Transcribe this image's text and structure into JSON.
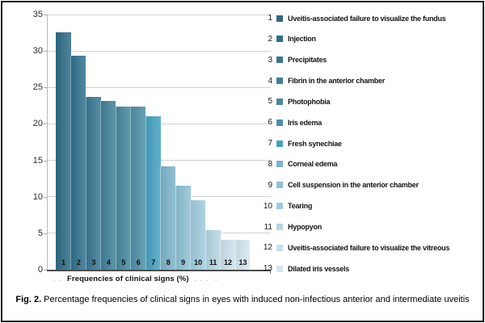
{
  "figure": {
    "caption": {
      "prefix": "Fig. 2.",
      "text": " Percentage frequencies of clinical signs in eyes with induced non-infectious anterior and intermediate uveitis"
    }
  },
  "chart_data": {
    "type": "bar",
    "title": "",
    "xlabel": "Frequencies of clinical signs (%)",
    "ylabel": "",
    "ylim": [
      0,
      35
    ],
    "yticks": [
      0,
      5,
      10,
      15,
      20,
      25,
      30,
      35
    ],
    "grid": true,
    "legend_position": "right",
    "categories": [
      "1",
      "2",
      "3",
      "4",
      "5",
      "6",
      "7",
      "8",
      "9",
      "10",
      "11",
      "12",
      "13"
    ],
    "values": [
      32.6,
      29.3,
      23.7,
      23.1,
      22.4,
      22.4,
      21.0,
      14.2,
      11.5,
      9.5,
      5.4,
      4.1,
      4.1
    ],
    "bar_colors": [
      "#2e6b85",
      "#31708b",
      "#387791",
      "#3f7f97",
      "#46879e",
      "#4e8fa7",
      "#47a2c0",
      "#7cb3c9",
      "#8dc0d3",
      "#9fcadb",
      "#b4d5e2",
      "#cbdfe9",
      "#d3e5ee"
    ],
    "legend": [
      {
        "num": "1",
        "label": "Uveitis-associated failure to visualize the fundus"
      },
      {
        "num": "2",
        "label": "Injection"
      },
      {
        "num": "3",
        "label": "Precipitates"
      },
      {
        "num": "4",
        "label": "Fibrin in the anterior chamber"
      },
      {
        "num": "5",
        "label": "Photophobia"
      },
      {
        "num": "6",
        "label": "Iris edema"
      },
      {
        "num": "7",
        "label": "Fresh synechiae"
      },
      {
        "num": "8",
        "label": "Corneal edema"
      },
      {
        "num": "9",
        "label": "Cell suspension in the anterior chamber"
      },
      {
        "num": "10",
        "label": "Tearing"
      },
      {
        "num": "11",
        "label": "Hypopyon"
      },
      {
        "num": "12",
        "label": "Uveitis-associated failure to visualize the vitreous"
      },
      {
        "num": "13",
        "label": "Dilated iris vessels"
      }
    ],
    "axis_marks": {
      "left": ". .",
      "right": ". . .  ."
    }
  }
}
